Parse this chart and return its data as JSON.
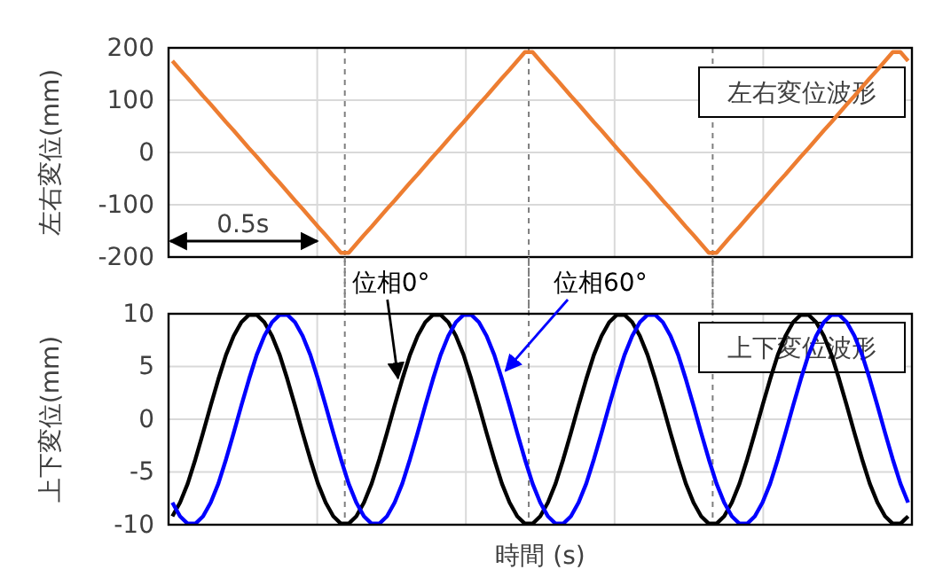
{
  "chart_data": [
    {
      "type": "line",
      "ylabel": "左右変位(mm)",
      "color": "#ed7d31",
      "categories": [
        null,
        null,
        null,
        null,
        null,
        null,
        null,
        null,
        null,
        null,
        null,
        null,
        null,
        null,
        null,
        null,
        null,
        null,
        null,
        null,
        null,
        null,
        null,
        null,
        null,
        null,
        null,
        null,
        null,
        null,
        null,
        null,
        null,
        null,
        null,
        null,
        null,
        null,
        null,
        null,
        null,
        null,
        null,
        null,
        null,
        null,
        null,
        null,
        null,
        null,
        null,
        null,
        null,
        null,
        null,
        null,
        null,
        null,
        null,
        null,
        null,
        null,
        null,
        null,
        null,
        null,
        null,
        null,
        null,
        null,
        null,
        null,
        null,
        null,
        null,
        null,
        null,
        null,
        null,
        null,
        null,
        null,
        null,
        null,
        null,
        null,
        null,
        null,
        null,
        null,
        null,
        null,
        null,
        null,
        null,
        null,
        null
      ],
      "values": [
        175,
        158,
        142,
        125,
        108,
        92,
        75,
        58,
        42,
        25,
        8,
        -8,
        -25,
        -42,
        -58,
        -75,
        -92,
        -108,
        -125,
        -142,
        -158,
        -175,
        -192,
        -192,
        -175,
        -158,
        -142,
        -125,
        -108,
        -92,
        -75,
        -58,
        -42,
        -25,
        -8,
        8,
        25,
        42,
        58,
        75,
        92,
        108,
        125,
        142,
        158,
        175,
        192,
        192,
        175,
        158,
        142,
        125,
        108,
        92,
        75,
        58,
        42,
        25,
        8,
        -8,
        -25,
        -42,
        -58,
        -75,
        -92,
        -108,
        -125,
        -142,
        -158,
        -175,
        -192,
        -192,
        -175,
        -158,
        -142,
        -125,
        -108,
        -92,
        -75,
        -58,
        -42,
        -25,
        -8,
        8,
        25,
        42,
        58,
        75,
        92,
        108,
        125,
        142,
        158,
        175,
        192,
        192,
        175
      ],
      "ylim": [
        -200,
        200
      ],
      "yticks": [
        -200,
        -100,
        0,
        100,
        200
      ],
      "tick_labels": "y",
      "grid": true,
      "annotations": [
        "左右変位波形",
        "0.5s"
      ]
    },
    {
      "type": "line",
      "xlabel": "時間 (s)",
      "ylabel": "上下変位(mm)",
      "categories": [
        null,
        null,
        null,
        null,
        null,
        null,
        null,
        null,
        null,
        null,
        null,
        null,
        null,
        null,
        null,
        null,
        null,
        null,
        null,
        null,
        null,
        null,
        null,
        null,
        null,
        null,
        null,
        null,
        null,
        null,
        null,
        null,
        null,
        null,
        null,
        null,
        null,
        null,
        null,
        null,
        null,
        null,
        null,
        null,
        null,
        null,
        null,
        null,
        null,
        null,
        null,
        null,
        null,
        null,
        null,
        null,
        null,
        null,
        null,
        null,
        null,
        null,
        null,
        null,
        null,
        null,
        null,
        null,
        null,
        null,
        null,
        null,
        null,
        null,
        null,
        null,
        null,
        null,
        null,
        null,
        null,
        null,
        null,
        null,
        null,
        null,
        null,
        null,
        null,
        null,
        null,
        null,
        null,
        null,
        null,
        null,
        null
      ],
      "series": [
        {
          "name": "位相0°",
          "color": "#000000",
          "values": [
            -9.2,
            -7.9,
            -6.1,
            -3.8,
            -1.3,
            1.3,
            3.8,
            6.1,
            7.9,
            9.2,
            9.9,
            9.9,
            9.2,
            7.9,
            6.1,
            3.8,
            1.3,
            -1.3,
            -3.8,
            -6.1,
            -7.9,
            -9.2,
            -9.9,
            -9.9,
            -9.2,
            -7.9,
            -6.1,
            -3.8,
            -1.3,
            1.3,
            3.8,
            6.1,
            7.9,
            9.2,
            9.9,
            9.9,
            9.2,
            7.9,
            6.1,
            3.8,
            1.3,
            -1.3,
            -3.8,
            -6.1,
            -7.9,
            -9.2,
            -9.9,
            -9.9,
            -9.2,
            -7.9,
            -6.1,
            -3.8,
            -1.3,
            1.3,
            3.8,
            6.1,
            7.9,
            9.2,
            9.9,
            9.9,
            9.2,
            7.9,
            6.1,
            3.8,
            1.3,
            -1.3,
            -3.8,
            -6.1,
            -7.9,
            -9.2,
            -9.9,
            -9.9,
            -9.2,
            -7.9,
            -6.1,
            -3.8,
            -1.3,
            1.3,
            3.8,
            6.1,
            7.9,
            9.2,
            9.9,
            9.9,
            9.2,
            7.9,
            6.1,
            3.8,
            1.3,
            -1.3,
            -3.8,
            -6.1,
            -7.9,
            -9.2,
            -9.9,
            -9.9,
            -9.2
          ]
        },
        {
          "name": "位相60°",
          "color": "#0000ff",
          "values": [
            -7.9,
            -9.2,
            -9.9,
            -9.9,
            -9.2,
            -7.9,
            -6.1,
            -3.8,
            -1.3,
            1.3,
            3.8,
            6.1,
            7.9,
            9.2,
            9.9,
            9.9,
            9.2,
            7.9,
            6.1,
            3.8,
            1.3,
            -1.3,
            -3.8,
            -6.1,
            -7.9,
            -9.2,
            -9.9,
            -9.9,
            -9.2,
            -7.9,
            -6.1,
            -3.8,
            -1.3,
            1.3,
            3.8,
            6.1,
            7.9,
            9.2,
            9.9,
            9.9,
            9.2,
            7.9,
            6.1,
            3.8,
            1.3,
            -1.3,
            -3.8,
            -6.1,
            -7.9,
            -9.2,
            -9.9,
            -9.9,
            -9.2,
            -7.9,
            -6.1,
            -3.8,
            -1.3,
            1.3,
            3.8,
            6.1,
            7.9,
            9.2,
            9.9,
            9.9,
            9.2,
            7.9,
            6.1,
            3.8,
            1.3,
            -1.3,
            -3.8,
            -6.1,
            -7.9,
            -9.2,
            -9.9,
            -9.9,
            -9.2,
            -7.9,
            -6.1,
            -3.8,
            -1.3,
            1.3,
            3.8,
            6.1,
            7.9,
            9.2,
            9.9,
            9.9,
            9.2,
            7.9,
            6.1,
            3.8,
            1.3,
            -1.3,
            -3.8,
            -6.1,
            -7.9
          ]
        }
      ],
      "ylim": [
        -10,
        10
      ],
      "yticks": [
        -10,
        -5,
        0,
        5,
        10
      ],
      "tick_labels": "y",
      "grid": true,
      "annotations": [
        "上下変位波形"
      ]
    }
  ]
}
